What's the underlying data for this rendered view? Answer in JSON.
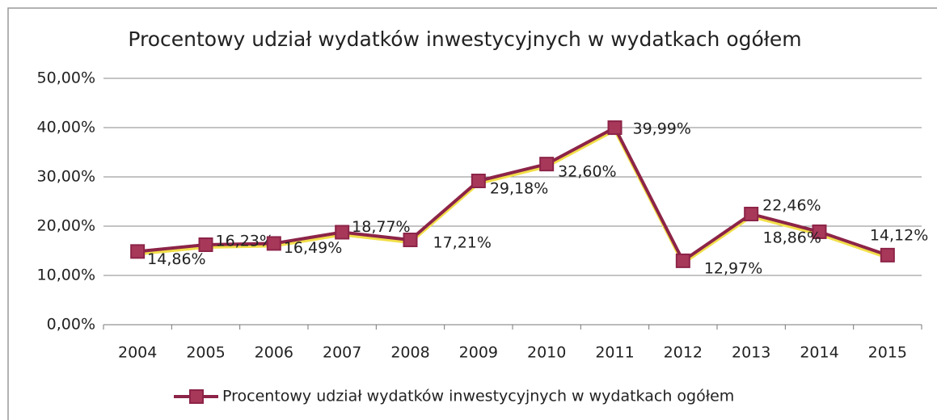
{
  "chart_data": {
    "type": "line",
    "title": "Procentowy udział wydatków inwestycyjnych w wydatkach ogółem",
    "categories": [
      "2004",
      "2005",
      "2006",
      "2007",
      "2008",
      "2009",
      "2010",
      "2011",
      "2012",
      "2013",
      "2014",
      "2015"
    ],
    "series": [
      {
        "name": "Procentowy udział wydatków inwestycyjnych w wydatkach ogółem",
        "color": "#8c2448",
        "values": [
          14.86,
          16.23,
          16.49,
          18.77,
          17.21,
          29.18,
          32.6,
          39.99,
          12.97,
          22.46,
          18.86,
          14.12
        ],
        "value_labels": [
          "14,86%",
          "16,23%",
          "16,49%",
          "18,77%",
          "17,21%",
          "29,18%",
          "32,60%",
          "39,99%",
          "12,97%",
          "22,46%",
          "18,86%",
          "14,12%"
        ]
      }
    ],
    "ylim": [
      0,
      50
    ],
    "yticks": [
      {
        "value": 0,
        "label": "0,00%"
      },
      {
        "value": 10,
        "label": "10,00%"
      },
      {
        "value": 20,
        "label": "20,00%"
      },
      {
        "value": 30,
        "label": "30,00%"
      },
      {
        "value": 40,
        "label": "40,00%"
      },
      {
        "value": 50,
        "label": "50,00%"
      }
    ],
    "grid": true,
    "legend": "bottom"
  }
}
